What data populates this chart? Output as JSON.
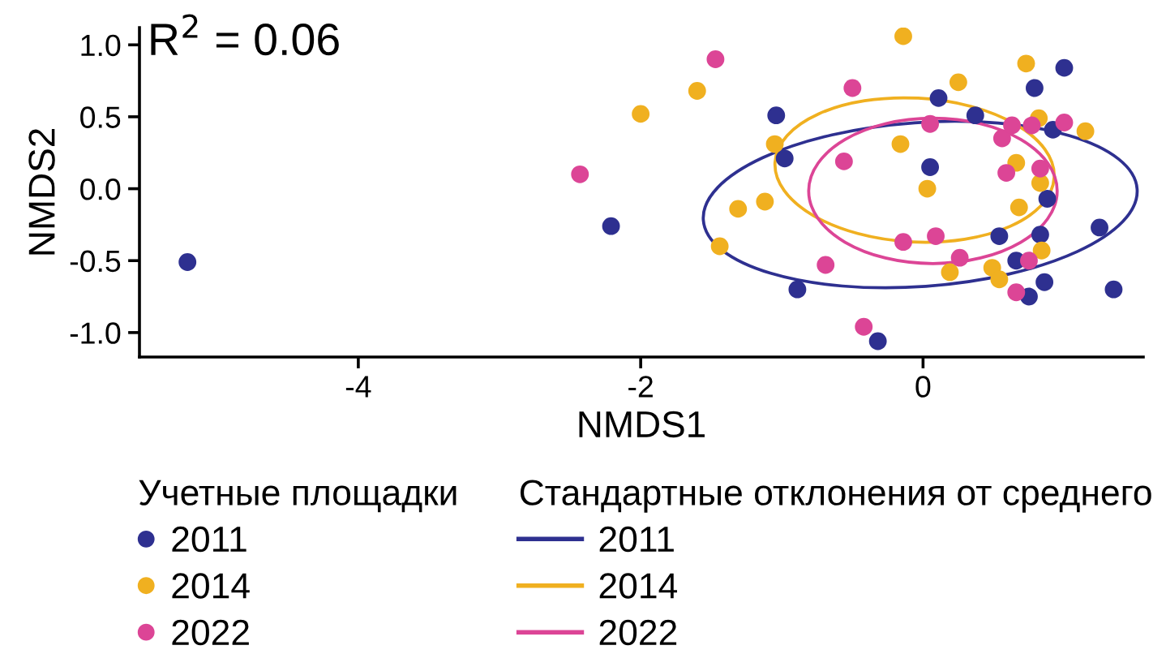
{
  "chart_data": {
    "type": "scatter",
    "xlabel": "NMDS1",
    "ylabel": "NMDS2",
    "annotations": [
      "R$^{2}$ = 0.06"
    ],
    "xlim": [
      -5.55,
      1.56
    ],
    "xticks": [
      -4,
      -2,
      0
    ],
    "ylim": [
      -1.17,
      1.12
    ],
    "yticks": [
      {
        "value": -1,
        "label": "-1.0"
      },
      {
        "value": -0.5,
        "label": "-0.5"
      },
      {
        "value": 0,
        "label": "0.0"
      },
      {
        "value": 0.5,
        "label": "0.5"
      },
      {
        "value": 1,
        "label": "1.0"
      }
    ],
    "grid": false,
    "line_style": "solid",
    "legend": "bottom",
    "legend_title": [
      "Учетные площадки",
      "Стандартные отклонения от среднего"
    ],
    "series": [
      {
        "name": "2011",
        "marker": "circle",
        "color": "#2e3090",
        "x": [
          -5.21,
          -2.21,
          -1.04,
          -0.98,
          -0.89,
          -0.32,
          0.05,
          0.11,
          0.37,
          0.79,
          1.0,
          0.92,
          0.88,
          0.54,
          0.83,
          0.66,
          0.86,
          0.75,
          1.25,
          1.35
        ],
        "values": [
          -0.51,
          -0.26,
          0.51,
          0.21,
          -0.7,
          -1.06,
          0.15,
          0.63,
          0.51,
          0.7,
          0.84,
          0.41,
          -0.07,
          -0.33,
          -0.32,
          -0.5,
          -0.65,
          -0.75,
          -0.27,
          -0.7
        ]
      },
      {
        "name": "2014",
        "marker": "circle",
        "color": "#f0b020",
        "x": [
          -0.14,
          0.73,
          0.25,
          -1.6,
          -2.0,
          0.82,
          1.15,
          -1.05,
          -0.16,
          0.66,
          0.83,
          0.03,
          -1.12,
          -1.31,
          0.68,
          -1.44,
          0.84,
          0.49,
          0.19,
          0.54
        ],
        "values": [
          1.06,
          0.87,
          0.74,
          0.68,
          0.52,
          0.49,
          0.4,
          0.31,
          0.31,
          0.18,
          0.04,
          0.0,
          -0.09,
          -0.14,
          -0.13,
          -0.4,
          -0.43,
          -0.55,
          -0.58,
          -0.63
        ]
      },
      {
        "name": "2022",
        "marker": "circle",
        "color": "#dc4596",
        "x": [
          -2.43,
          -1.47,
          -0.5,
          -0.56,
          0.05,
          0.56,
          0.63,
          0.77,
          1.0,
          0.59,
          0.83,
          -0.14,
          0.09,
          0.26,
          -0.69,
          0.75,
          0.66,
          -0.42
        ],
        "values": [
          0.1,
          0.9,
          0.7,
          0.19,
          0.45,
          0.35,
          0.44,
          0.44,
          0.46,
          0.11,
          0.14,
          -0.37,
          -0.33,
          -0.48,
          -0.53,
          -0.5,
          -0.72,
          -0.96
        ]
      },
      {
        "name": "2011",
        "type": "line",
        "color": "#2e3090"
      },
      {
        "name": "2014",
        "type": "line",
        "color": "#f0b020"
      },
      {
        "name": "2022",
        "type": "line",
        "color": "#dc4596"
      }
    ]
  }
}
